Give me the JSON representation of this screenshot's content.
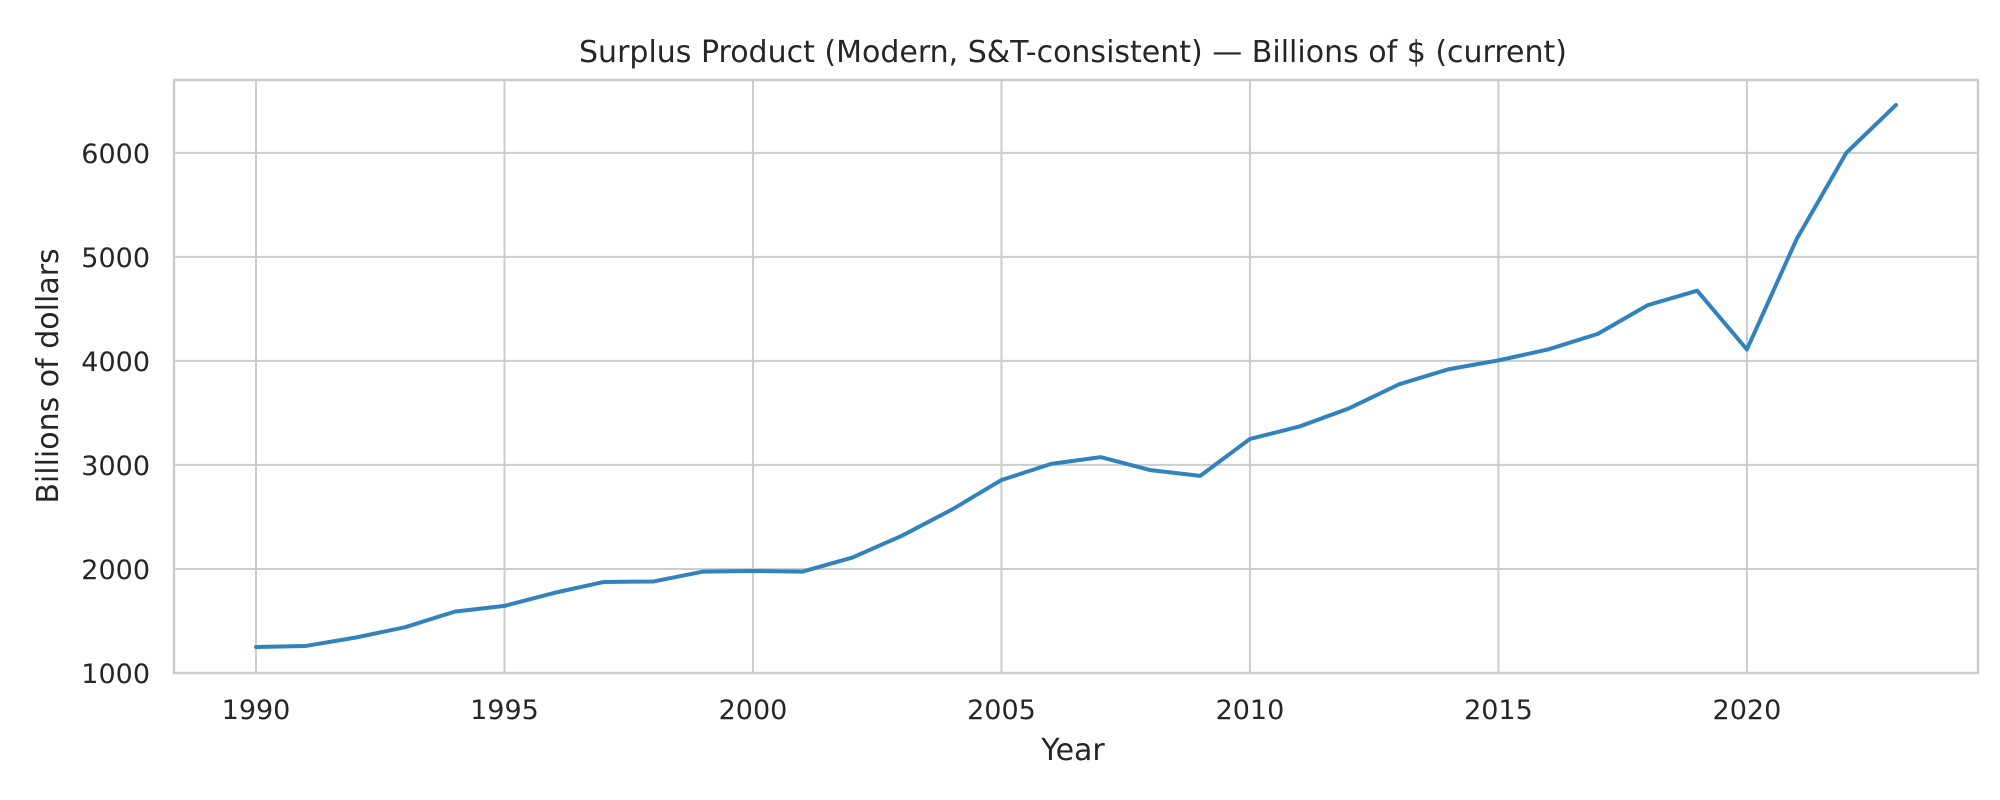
{
  "chart_data": {
    "type": "line",
    "title": "Surplus Product (Modern, S&T-consistent) — Billions of $ (current)",
    "xlabel": "Year",
    "ylabel": "Billions of dollars",
    "xlim": [
      1988.35,
      2024.65
    ],
    "ylim": [
      1000,
      6700
    ],
    "xticks": [
      1990,
      1995,
      2000,
      2005,
      2010,
      2015,
      2020
    ],
    "yticks": [
      1000,
      2000,
      3000,
      4000,
      5000,
      6000
    ],
    "grid": true,
    "legend": "none",
    "line_color": "#3182bd",
    "x": [
      1990,
      1991,
      1992,
      1993,
      1994,
      1995,
      1996,
      1997,
      1998,
      1999,
      2000,
      2001,
      2002,
      2003,
      2004,
      2005,
      2006,
      2007,
      2008,
      2009,
      2010,
      2011,
      2012,
      2013,
      2014,
      2015,
      2016,
      2017,
      2018,
      2019,
      2020,
      2021,
      2022,
      2023
    ],
    "series": [
      {
        "values": [
          1250,
          1260,
          1340,
          1440,
          1590,
          1645,
          1770,
          1875,
          1880,
          1975,
          1980,
          1975,
          2110,
          2320,
          2570,
          2855,
          3010,
          3075,
          2950,
          2895,
          3250,
          3370,
          3545,
          3775,
          3920,
          4005,
          4110,
          4260,
          4535,
          4675,
          4110,
          5170,
          6000,
          6460
        ]
      }
    ]
  }
}
